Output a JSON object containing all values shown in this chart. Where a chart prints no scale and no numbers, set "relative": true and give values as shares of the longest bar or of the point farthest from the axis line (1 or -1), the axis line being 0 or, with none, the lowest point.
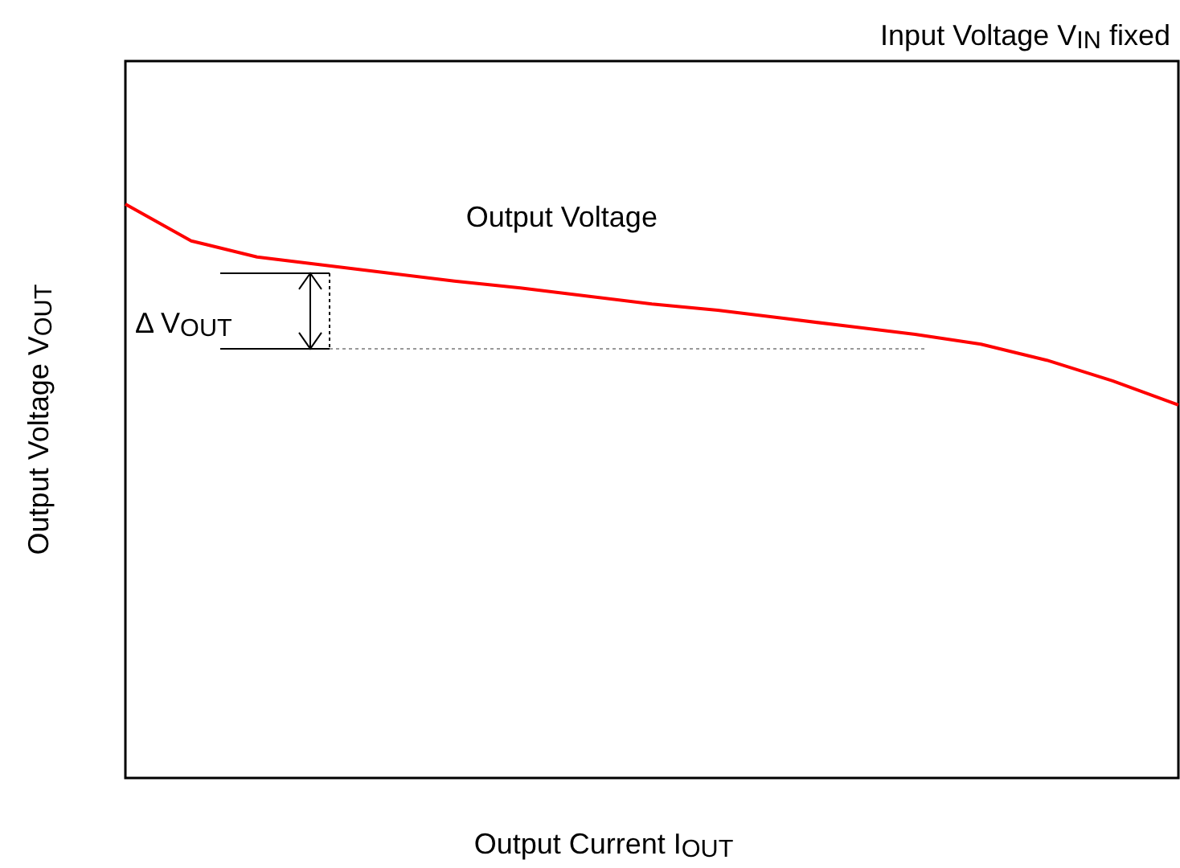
{
  "chart_data": {
    "type": "line",
    "relative": true,
    "title": "Input Voltage V$_{IN}$ fixed",
    "xlabel": "Output Current I$_{OUT}$",
    "ylabel": "Output Voltage V$_{OUT}$",
    "categories": [
      null,
      null,
      null,
      null,
      null,
      null,
      null,
      null,
      null,
      null,
      null,
      null,
      null,
      null,
      null,
      null,
      null
    ],
    "series": [
      {
        "name": "Output Voltage",
        "color": "#ff0000",
        "values": [
          1,
          0.936,
          0.908,
          0.894,
          0.88,
          0.866,
          0.854,
          0.84,
          0.826,
          0.815,
          0.801,
          0.787,
          0.773,
          0.756,
          0.728,
          0.692,
          0.65
        ]
      }
    ],
    "ref_lines": [
      {
        "axis": "y",
        "value": 0.748,
        "label": "Δ V$_{OUT}$",
        "color": "#999999",
        "line_style": "dotted"
      }
    ]
  }
}
